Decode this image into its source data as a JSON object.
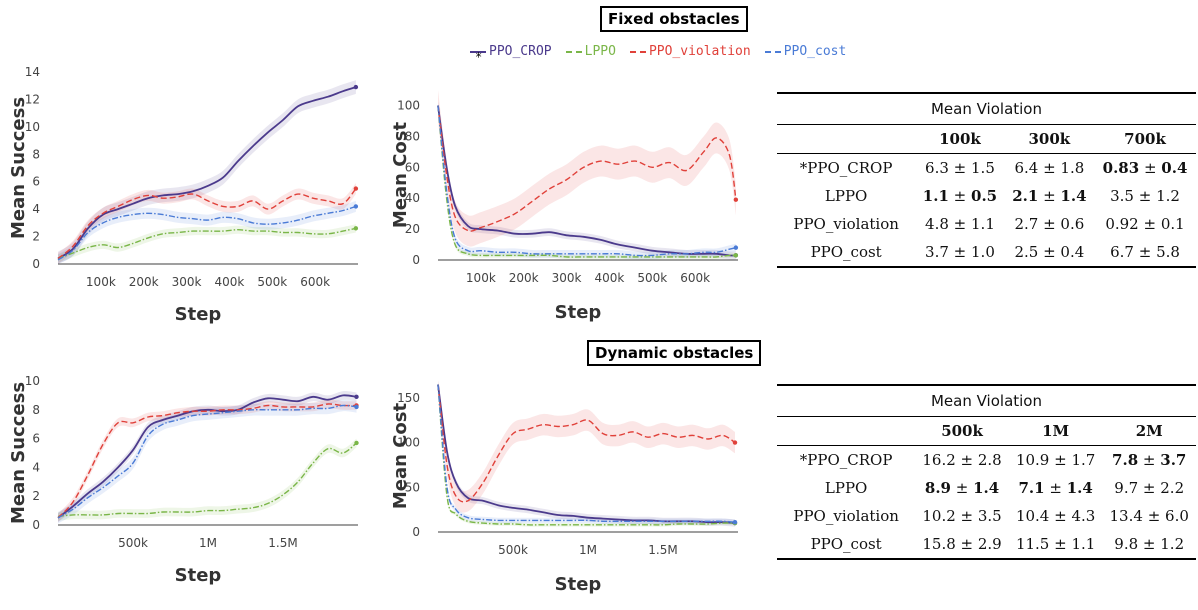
{
  "sections": [
    {
      "title": "Fixed obstacles"
    },
    {
      "title": "Dynamic obstacles"
    }
  ],
  "legend": [
    {
      "name": "PPO_CROP",
      "color": "#4b3a8c",
      "dash": "solid",
      "prefix": "*"
    },
    {
      "name": "LPPO",
      "color": "#7ab648",
      "dash": "dashdot",
      "prefix": ""
    },
    {
      "name": "PPO_violation",
      "color": "#e0413a",
      "dash": "dash",
      "prefix": ""
    },
    {
      "name": "PPO_cost",
      "color": "#4a7bd6",
      "dash": "dashdot",
      "prefix": ""
    }
  ],
  "chart_data": [
    {
      "type": "line",
      "xlabel": "Step",
      "ylabel": "Mean Success",
      "xlim": [
        0,
        700000
      ],
      "ylim": [
        0,
        14
      ],
      "yticks": [
        0,
        2,
        4,
        6,
        8,
        10,
        12,
        14
      ],
      "xticks": [
        100000,
        200000,
        300000,
        400000,
        500000,
        600000
      ],
      "xticklabels": [
        "100k",
        "200k",
        "300k",
        "400k",
        "500k",
        "600k"
      ],
      "x": [
        0,
        35000,
        70000,
        105000,
        140000,
        175000,
        210000,
        245000,
        280000,
        315000,
        350000,
        385000,
        420000,
        455000,
        490000,
        525000,
        560000,
        595000,
        630000,
        665000,
        695000
      ],
      "series": [
        {
          "name": "PPO_CROP",
          "values": [
            0.4,
            1.1,
            2.6,
            3.6,
            4.0,
            4.4,
            4.8,
            5.0,
            5.1,
            5.3,
            5.7,
            6.3,
            7.5,
            8.6,
            9.6,
            10.5,
            11.5,
            11.9,
            12.2,
            12.6,
            12.9
          ],
          "band": 0.5
        },
        {
          "name": "LPPO",
          "values": [
            0.4,
            0.8,
            1.2,
            1.4,
            1.2,
            1.5,
            1.9,
            2.2,
            2.3,
            2.4,
            2.4,
            2.4,
            2.5,
            2.4,
            2.4,
            2.3,
            2.3,
            2.2,
            2.2,
            2.4,
            2.6
          ],
          "band": 0.3
        },
        {
          "name": "PPO_violation",
          "values": [
            0.4,
            1.3,
            2.8,
            3.7,
            4.2,
            4.7,
            5.0,
            4.8,
            4.9,
            5.1,
            4.6,
            4.2,
            4.2,
            4.6,
            4.0,
            4.6,
            5.1,
            4.8,
            4.6,
            4.4,
            5.5
          ],
          "band": 0.4
        },
        {
          "name": "PPO_cost",
          "values": [
            0.3,
            1.0,
            2.3,
            3.0,
            3.4,
            3.6,
            3.7,
            3.6,
            3.4,
            3.3,
            3.2,
            3.4,
            3.3,
            3.0,
            2.9,
            3.0,
            3.2,
            3.5,
            3.7,
            3.9,
            4.2
          ],
          "band": 0.4
        }
      ]
    },
    {
      "type": "line",
      "xlabel": "Step",
      "ylabel": "Mean Cost",
      "xlim": [
        0,
        700000
      ],
      "ylim": [
        0,
        110
      ],
      "yticks": [
        0,
        20,
        40,
        60,
        80,
        100
      ],
      "xticks": [
        100000,
        200000,
        300000,
        400000,
        500000,
        600000
      ],
      "xticklabels": [
        "100k",
        "200k",
        "300k",
        "400k",
        "500k",
        "600k"
      ],
      "x": [
        0,
        20000,
        40000,
        70000,
        100000,
        140000,
        180000,
        220000,
        260000,
        300000,
        340000,
        380000,
        420000,
        460000,
        500000,
        540000,
        580000,
        620000,
        650000,
        680000,
        695000
      ],
      "series": [
        {
          "name": "PPO_CROP",
          "values": [
            100,
            60,
            35,
            22,
            20,
            19,
            17,
            17,
            18,
            16,
            15,
            13,
            10,
            8,
            6,
            5,
            4,
            4,
            4,
            3,
            3
          ],
          "band": 2.5
        },
        {
          "name": "LPPO",
          "values": [
            100,
            40,
            10,
            4,
            3,
            3,
            3,
            3,
            3,
            2,
            2,
            2,
            2,
            2,
            2,
            2,
            2,
            2,
            2,
            3,
            3
          ],
          "band": 1.5
        },
        {
          "name": "PPO_violation",
          "values": [
            100,
            55,
            28,
            19,
            21,
            25,
            30,
            38,
            46,
            52,
            60,
            64,
            62,
            64,
            60,
            63,
            58,
            70,
            79,
            68,
            39
          ],
          "band": 10
        },
        {
          "name": "PPO_cost",
          "values": [
            100,
            45,
            14,
            6,
            6,
            5,
            5,
            4,
            4,
            4,
            4,
            4,
            4,
            3,
            3,
            4,
            4,
            5,
            5,
            7,
            8
          ],
          "band": 2.5
        }
      ]
    },
    {
      "type": "line",
      "xlabel": "Step",
      "ylabel": "Mean Success",
      "xlim": [
        0,
        2000000
      ],
      "ylim": [
        0,
        10
      ],
      "yticks": [
        0,
        2,
        4,
        6,
        8,
        10
      ],
      "xticks": [
        500000,
        1000000,
        1500000
      ],
      "xticklabels": [
        "500k",
        "1M",
        "1.5M"
      ],
      "x": [
        0,
        100000,
        200000,
        300000,
        400000,
        500000,
        600000,
        700000,
        800000,
        900000,
        1000000,
        1100000,
        1200000,
        1300000,
        1400000,
        1500000,
        1600000,
        1700000,
        1800000,
        1900000,
        1990000
      ],
      "series": [
        {
          "name": "PPO_CROP",
          "values": [
            0.5,
            1.3,
            2.2,
            3.0,
            4.0,
            5.2,
            6.8,
            7.3,
            7.6,
            7.9,
            8.0,
            7.9,
            8.0,
            8.5,
            8.8,
            8.7,
            8.6,
            8.9,
            8.7,
            9.0,
            8.9
          ],
          "band": 0.3
        },
        {
          "name": "LPPO",
          "values": [
            0.6,
            0.7,
            0.7,
            0.7,
            0.8,
            0.8,
            0.8,
            0.9,
            0.9,
            0.9,
            1.0,
            1.0,
            1.1,
            1.2,
            1.5,
            2.1,
            3.0,
            4.3,
            5.3,
            5.0,
            5.7
          ],
          "band": 0.3
        },
        {
          "name": "PPO_violation",
          "values": [
            0.5,
            1.6,
            3.5,
            5.6,
            7.1,
            7.1,
            7.5,
            7.6,
            7.8,
            7.9,
            7.9,
            8.0,
            8.0,
            8.1,
            8.3,
            8.2,
            8.2,
            8.2,
            8.4,
            8.3,
            8.3
          ],
          "band": 0.3
        },
        {
          "name": "PPO_cost",
          "values": [
            0.5,
            1.1,
            1.9,
            2.6,
            3.4,
            4.3,
            6.2,
            7.0,
            7.3,
            7.6,
            7.7,
            7.8,
            7.9,
            8.0,
            8.0,
            8.0,
            8.0,
            8.1,
            8.1,
            8.3,
            8.2
          ],
          "band": 0.4
        }
      ]
    },
    {
      "type": "line",
      "xlabel": "Step",
      "ylabel": "Mean Cost",
      "xlim": [
        0,
        2000000
      ],
      "ylim": [
        0,
        170
      ],
      "yticks": [
        0,
        50,
        100,
        150
      ],
      "xticks": [
        500000,
        1000000,
        1500000
      ],
      "xticklabels": [
        "500k",
        "1M",
        "1.5M"
      ],
      "x": [
        0,
        60000,
        120000,
        200000,
        300000,
        400000,
        500000,
        600000,
        700000,
        800000,
        900000,
        1000000,
        1100000,
        1200000,
        1300000,
        1400000,
        1500000,
        1600000,
        1700000,
        1800000,
        1900000,
        1980000
      ],
      "series": [
        {
          "name": "PPO_CROP",
          "values": [
            165,
            90,
            55,
            38,
            35,
            30,
            27,
            25,
            22,
            19,
            18,
            16,
            15,
            14,
            13,
            13,
            12,
            12,
            12,
            11,
            11,
            10
          ],
          "band": 4
        },
        {
          "name": "LPPO",
          "values": [
            165,
            40,
            20,
            12,
            10,
            9,
            9,
            8,
            8,
            8,
            8,
            8,
            8,
            8,
            8,
            8,
            8,
            9,
            9,
            9,
            10,
            10
          ],
          "band": 2
        },
        {
          "name": "PPO_violation",
          "values": [
            165,
            75,
            40,
            35,
            55,
            85,
            110,
            115,
            120,
            118,
            120,
            125,
            110,
            108,
            112,
            106,
            110,
            106,
            108,
            104,
            108,
            100
          ],
          "band": 12
        },
        {
          "name": "PPO_cost",
          "values": [
            165,
            50,
            25,
            16,
            14,
            13,
            13,
            13,
            13,
            13,
            13,
            13,
            12,
            12,
            12,
            12,
            12,
            12,
            12,
            12,
            12,
            11
          ],
          "band": 3
        }
      ]
    }
  ],
  "tables": [
    {
      "caption": "Mean Violation",
      "columns": [
        "",
        "100k",
        "300k",
        "700k"
      ],
      "rows": [
        {
          "name": "*PPO_CROP",
          "cells": [
            {
              "m": "6.3",
              "s": "1.5",
              "b": false
            },
            {
              "m": "6.4",
              "s": "1.8",
              "b": false
            },
            {
              "m": "0.83",
              "s": "0.4",
              "b": true
            }
          ]
        },
        {
          "name": "LPPO",
          "cells": [
            {
              "m": "1.1",
              "s": "0.5",
              "b": true
            },
            {
              "m": "2.1",
              "s": "1.4",
              "b": true
            },
            {
              "m": "3.5",
              "s": "1.2",
              "b": false
            }
          ]
        },
        {
          "name": "PPO_violation",
          "cells": [
            {
              "m": "4.8",
              "s": "1.1",
              "b": false
            },
            {
              "m": "2.7",
              "s": "0.6",
              "b": false
            },
            {
              "m": "0.92",
              "s": "0.1",
              "b": false
            }
          ]
        },
        {
          "name": "PPO_cost",
          "cells": [
            {
              "m": "3.7",
              "s": "1.0",
              "b": false
            },
            {
              "m": "2.5",
              "s": "0.4",
              "b": false
            },
            {
              "m": "6.7",
              "s": "5.8",
              "b": false
            }
          ]
        }
      ]
    },
    {
      "caption": "Mean Violation",
      "columns": [
        "",
        "500k",
        "1M",
        "2M"
      ],
      "rows": [
        {
          "name": "*PPO_CROP",
          "cells": [
            {
              "m": "16.2",
              "s": "2.8",
              "b": false
            },
            {
              "m": "10.9",
              "s": "1.7",
              "b": false
            },
            {
              "m": "7.8",
              "s": "3.7",
              "b": true
            }
          ]
        },
        {
          "name": "LPPO",
          "cells": [
            {
              "m": "8.9",
              "s": "1.4",
              "b": true
            },
            {
              "m": "7.1",
              "s": "1.4",
              "b": true
            },
            {
              "m": "9.7",
              "s": "2.2",
              "b": false
            }
          ]
        },
        {
          "name": "PPO_violation",
          "cells": [
            {
              "m": "10.2",
              "s": "3.5",
              "b": false
            },
            {
              "m": "10.4",
              "s": "4.3",
              "b": false
            },
            {
              "m": "13.4",
              "s": "6.0",
              "b": false
            }
          ]
        },
        {
          "name": "PPO_cost",
          "cells": [
            {
              "m": "15.8",
              "s": "2.9",
              "b": false
            },
            {
              "m": "11.5",
              "s": "1.1",
              "b": false
            },
            {
              "m": "9.8",
              "s": "1.2",
              "b": false
            }
          ]
        }
      ]
    }
  ]
}
